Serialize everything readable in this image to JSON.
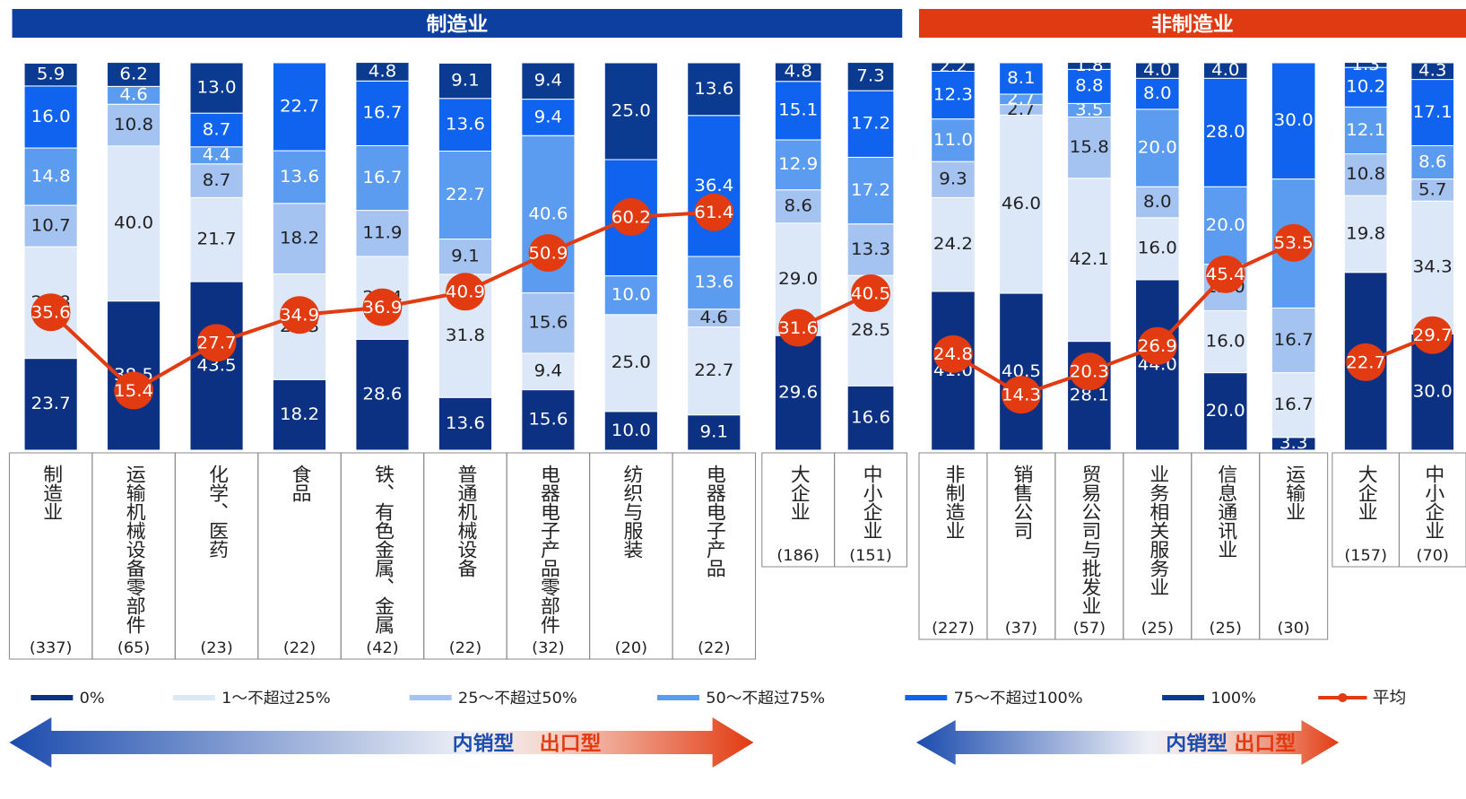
{
  "legend": {
    "series": [
      {
        "name": "0%",
        "color": "#0c3183"
      },
      {
        "name": "1～不超过25%",
        "color": "#dce7f8"
      },
      {
        "name": "25～不超过50%",
        "color": "#a5c3f1"
      },
      {
        "name": "50～不超过75%",
        "color": "#5c9cf0"
      },
      {
        "name": "75～不超过100%",
        "color": "#0f63ee"
      },
      {
        "name": "100%",
        "color": "#0b3a91"
      }
    ],
    "line": {
      "name": "平均",
      "color": "#e23b12"
    }
  },
  "chart_data": [
    {
      "type": "stacked_bar",
      "title": "制造业",
      "title_color": "#0c3f9f",
      "ylim": [
        0,
        100
      ],
      "annotations": [
        "内销型",
        "出口型"
      ],
      "panels": [
        {
          "categories": [
            "制造业",
            "运输机械设备零部件",
            "化学、医药",
            "食品",
            "铁、有色金属、金属",
            "普通机械设备",
            "电器电子产品零部件",
            "纺织与服装",
            "电器电子产品"
          ],
          "counts": [
            "(337)",
            "(65)",
            "(23)",
            "(22)",
            "(42)",
            "(22)",
            "(32)",
            "(20)",
            "(22)"
          ],
          "series": [
            {
              "values": [
                23.7,
                38.5,
                43.5,
                18.2,
                28.6,
                13.6,
                15.6,
                10.0,
                9.1
              ],
              "value_labels": [
                "23.7",
                "38.5",
                "43.5",
                "18.2",
                "28.6",
                "13.6",
                "15.6",
                "10.0",
                "9.1"
              ]
            },
            {
              "values": [
                28.8,
                40.0,
                21.7,
                27.3,
                21.4,
                31.8,
                9.4,
                25.0,
                22.7
              ],
              "value_labels": [
                "28.8",
                "40.0",
                "21.7",
                "27.3",
                "21.4",
                "31.8",
                "9.4",
                "25.0",
                "22.7"
              ]
            },
            {
              "values": [
                10.7,
                10.8,
                8.7,
                18.2,
                11.9,
                9.1,
                15.6,
                0,
                4.6
              ],
              "value_labels": [
                "10.7",
                "10.8",
                "8.7",
                "18.2",
                "11.9",
                "9.1",
                "15.6",
                null,
                "4.6"
              ]
            },
            {
              "values": [
                14.8,
                4.6,
                4.4,
                13.6,
                16.7,
                22.7,
                40.6,
                10.0,
                13.6
              ],
              "value_labels": [
                "14.8",
                "4.6",
                "4.4",
                "13.6",
                "16.7",
                "22.7",
                "40.6",
                "10.0",
                "13.6"
              ]
            },
            {
              "values": [
                16.0,
                0,
                8.7,
                22.7,
                16.7,
                13.6,
                9.4,
                30.0,
                36.4
              ],
              "value_labels": [
                "16.0",
                null,
                "8.7",
                "22.7",
                "16.7",
                "13.6",
                "9.4",
                "30.0",
                "36.4"
              ]
            },
            {
              "values": [
                5.9,
                6.2,
                13.0,
                0,
                4.8,
                9.1,
                9.4,
                25.0,
                13.6
              ],
              "value_labels": [
                "5.9",
                "6.2",
                "13.0",
                null,
                "4.8",
                "9.1",
                "9.4",
                "25.0",
                "13.6"
              ]
            }
          ],
          "line": {
            "values": [
              35.6,
              15.4,
              27.7,
              34.9,
              36.9,
              40.9,
              50.9,
              60.2,
              61.4
            ]
          }
        },
        {
          "categories": [
            "大企业",
            "中小企业"
          ],
          "counts": [
            "(186)",
            "(151)"
          ],
          "series": [
            {
              "values": [
                29.6,
                16.6
              ],
              "value_labels": [
                "29.6",
                "16.6"
              ]
            },
            {
              "values": [
                29.0,
                28.5
              ],
              "value_labels": [
                "29.0",
                "28.5"
              ]
            },
            {
              "values": [
                8.6,
                13.3
              ],
              "value_labels": [
                "8.6",
                "13.3"
              ]
            },
            {
              "values": [
                12.9,
                17.2
              ],
              "value_labels": [
                "12.9",
                "17.2"
              ]
            },
            {
              "values": [
                15.1,
                17.2
              ],
              "value_labels": [
                "15.1",
                "17.2"
              ]
            },
            {
              "values": [
                4.8,
                7.3
              ],
              "value_labels": [
                "4.8",
                "7.3"
              ]
            }
          ],
          "line": {
            "values": [
              31.6,
              40.5
            ]
          }
        }
      ]
    },
    {
      "type": "stacked_bar",
      "title": "非制造业",
      "title_color": "#e03a12",
      "ylim": [
        0,
        100
      ],
      "annotations": [
        "内销型",
        "出口型"
      ],
      "panels": [
        {
          "categories": [
            "非制造业",
            "销售公司",
            "贸易公司与批发业",
            "业务相关服务业",
            "信息通讯业",
            "运输业"
          ],
          "counts": [
            "(227)",
            "(37)",
            "(57)",
            "(25)",
            "(25)",
            "(30)"
          ],
          "series": [
            {
              "values": [
                41.0,
                40.5,
                28.1,
                44.0,
                20.0,
                3.3
              ],
              "value_labels": [
                "41.0",
                "40.5",
                "28.1",
                "44.0",
                "20.0",
                "3.3"
              ]
            },
            {
              "values": [
                24.2,
                46.0,
                42.1,
                16.0,
                16.0,
                16.7
              ],
              "value_labels": [
                "24.2",
                "46.0",
                "42.1",
                "16.0",
                "16.0",
                "16.7"
              ]
            },
            {
              "values": [
                9.3,
                2.7,
                15.8,
                8.0,
                12.0,
                16.7
              ],
              "value_labels": [
                "9.3",
                "2.7",
                "15.8",
                "8.0",
                "12.0",
                "16.7"
              ]
            },
            {
              "values": [
                11.0,
                2.7,
                3.5,
                20.0,
                20.0,
                33.3
              ],
              "value_labels": [
                "11.0",
                "2.7",
                "3.5",
                "20.0",
                "20.0",
                "33.3"
              ]
            },
            {
              "values": [
                12.3,
                8.1,
                8.8,
                8.0,
                28.0,
                30.0
              ],
              "value_labels": [
                "12.3",
                "8.1",
                "8.8",
                "8.0",
                "28.0",
                "30.0"
              ]
            },
            {
              "values": [
                2.2,
                0,
                1.8,
                4.0,
                4.0,
                0
              ],
              "value_labels": [
                "2.2",
                null,
                "1.8",
                "4.0",
                "4.0",
                null
              ]
            }
          ],
          "line": {
            "values": [
              24.8,
              14.3,
              20.3,
              26.9,
              45.4,
              53.5
            ]
          }
        },
        {
          "categories": [
            "大企业",
            "中小企业"
          ],
          "counts": [
            "(157)",
            "(70)"
          ],
          "series": [
            {
              "values": [
                45.9,
                30.0
              ],
              "value_labels": [
                "45.9",
                "30.0"
              ]
            },
            {
              "values": [
                19.8,
                34.3
              ],
              "value_labels": [
                "19.8",
                "34.3"
              ]
            },
            {
              "values": [
                10.8,
                5.7
              ],
              "value_labels": [
                "10.8",
                "5.7"
              ]
            },
            {
              "values": [
                12.1,
                8.6
              ],
              "value_labels": [
                "12.1",
                "8.6"
              ]
            },
            {
              "values": [
                10.2,
                17.1
              ],
              "value_labels": [
                "10.2",
                "17.1"
              ]
            },
            {
              "values": [
                1.3,
                4.3
              ],
              "value_labels": [
                "1.3",
                "4.3"
              ]
            }
          ],
          "line": {
            "values": [
              22.7,
              29.7
            ]
          }
        }
      ]
    }
  ]
}
